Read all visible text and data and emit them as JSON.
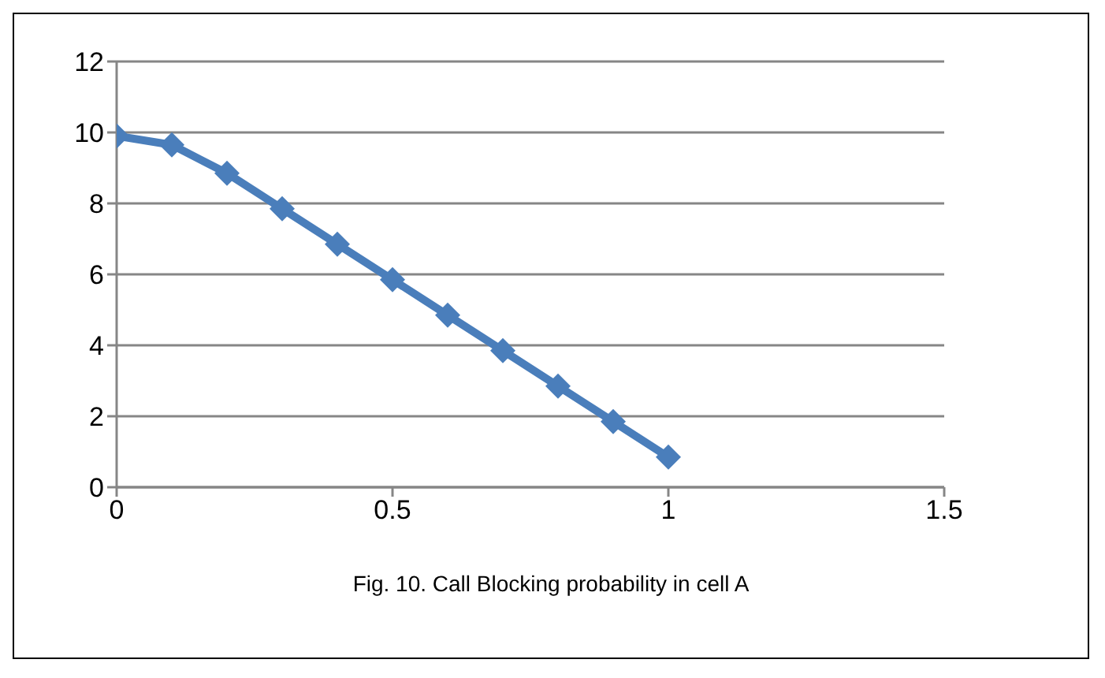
{
  "chart_data": {
    "type": "line",
    "x": [
      0,
      0.1,
      0.2,
      0.3,
      0.4,
      0.5,
      0.6,
      0.7,
      0.8,
      0.9,
      1
    ],
    "series": [
      {
        "color": "#4a7ebb",
        "values": [
          9.9,
          9.65,
          8.85,
          7.85,
          6.85,
          5.85,
          4.85,
          3.85,
          2.85,
          1.85,
          0.85
        ]
      }
    ],
    "xlim": [
      0,
      1.5
    ],
    "xticks": [
      0,
      0.5,
      1,
      1.5
    ],
    "ylim": [
      0,
      12
    ],
    "yticks": [
      0,
      2,
      4,
      6,
      8,
      10,
      12
    ],
    "grid": "y",
    "marker": "diamond",
    "line_style": "solid",
    "annotations": [
      "Fig. 10. Call Blocking probability in cell A"
    ]
  }
}
